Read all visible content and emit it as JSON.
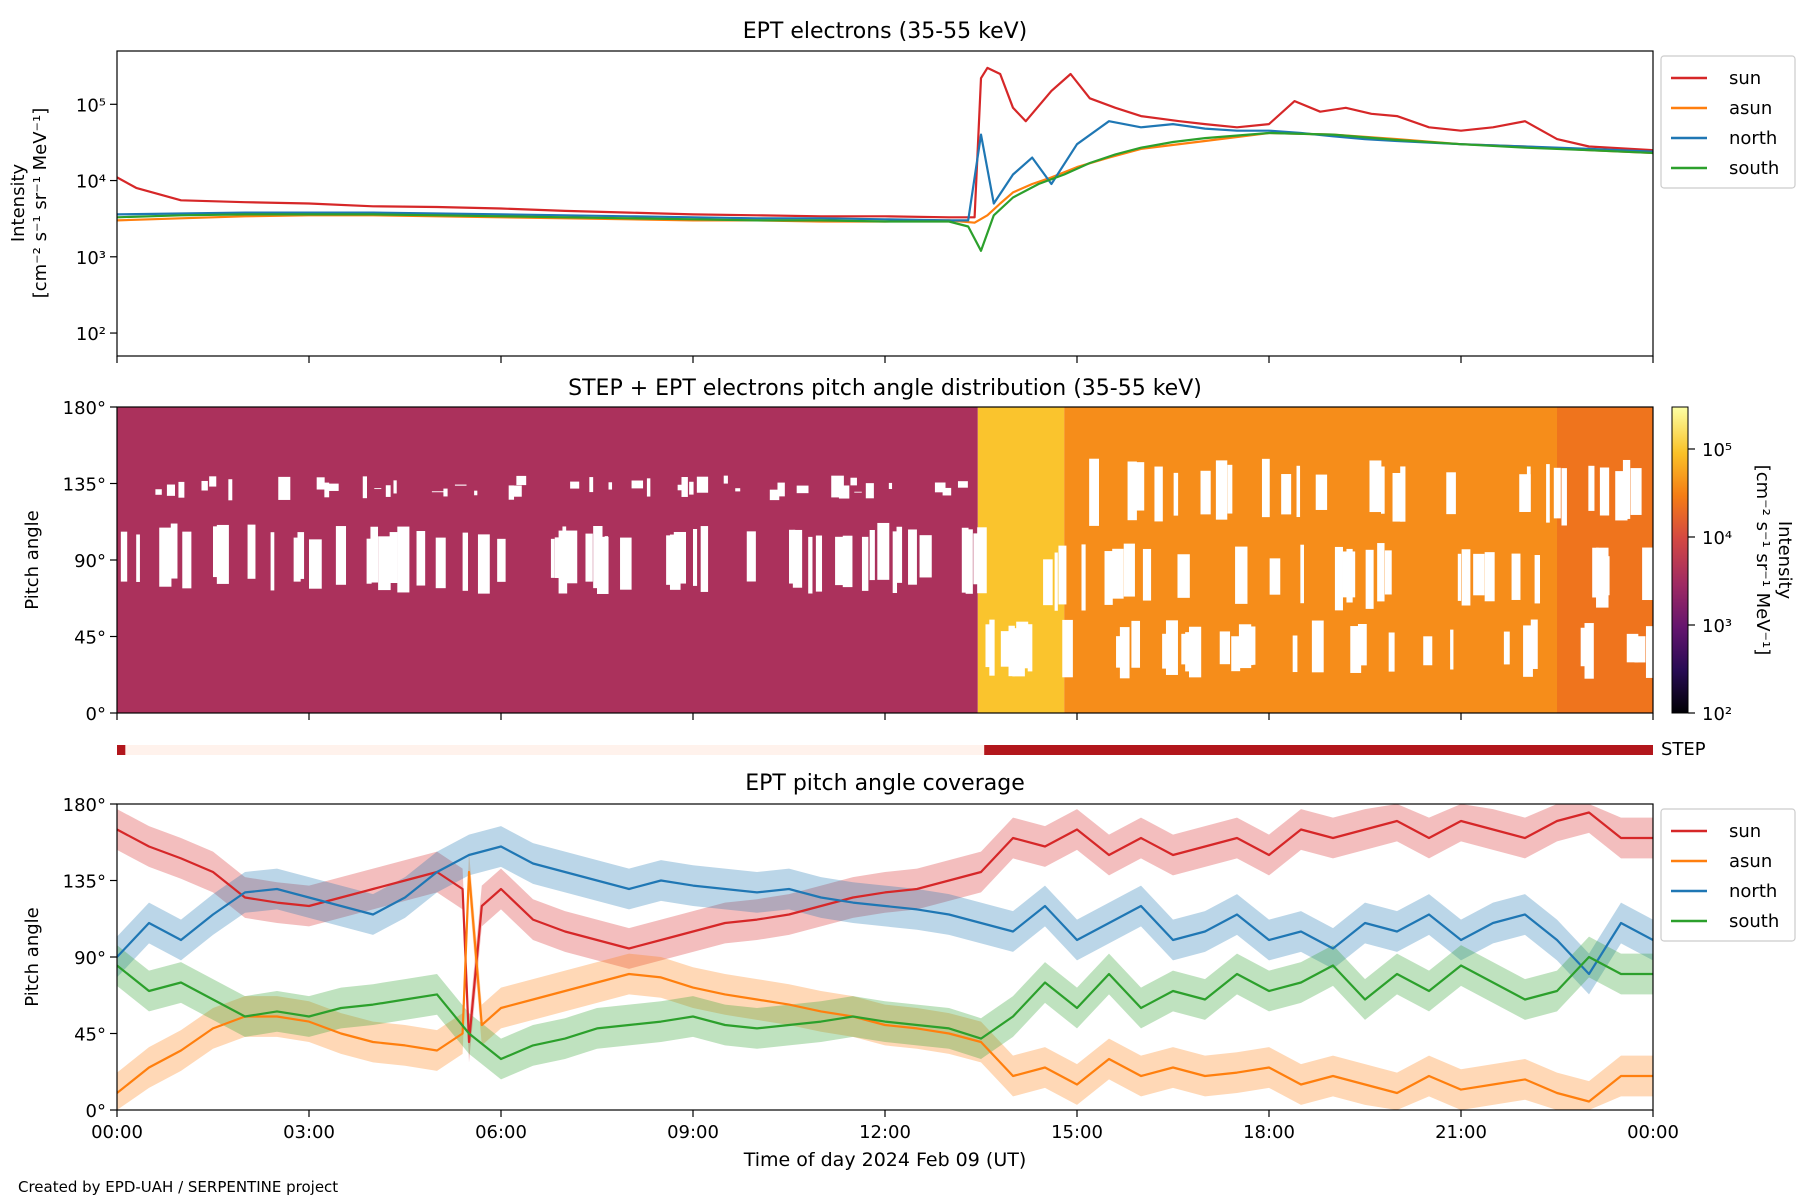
{
  "figure": {
    "footer": "Created by EPD-UAH / SERPENTINE project",
    "xlabel": "Time of day 2024 Feb 09 (UT)",
    "xticks": [
      "00:00",
      "03:00",
      "06:00",
      "09:00",
      "12:00",
      "15:00",
      "18:00",
      "21:00",
      "00:00"
    ]
  },
  "chart_data": [
    {
      "type": "line",
      "title": "EPT electrons (35-55 keV)",
      "ylabel_line1": "Intensity",
      "ylabel_line2": "[cm⁻² s⁻¹ sr⁻¹ MeV⁻¹]",
      "yscale": "log",
      "ylim": [
        50,
        500000
      ],
      "yticks": [
        "10²",
        "10³",
        "10⁴",
        "10⁵"
      ],
      "xlim_hours": [
        0,
        24
      ],
      "legend": {
        "placement": "outside-right",
        "entries": [
          "sun",
          "asun",
          "north",
          "south"
        ]
      },
      "series": [
        {
          "name": "sun",
          "color": "#d62728",
          "x": [
            0,
            0.3,
            1,
            2,
            3,
            4,
            5,
            6,
            7,
            8,
            9,
            10,
            11,
            12,
            13,
            13.4,
            13.5,
            13.6,
            13.8,
            14.0,
            14.2,
            14.6,
            14.9,
            15.2,
            15.6,
            16,
            16.6,
            17,
            17.5,
            18,
            18.4,
            18.8,
            19.2,
            19.6,
            20,
            20.5,
            21,
            21.5,
            22,
            22.5,
            23,
            24
          ],
          "y": [
            11000,
            8000,
            5500,
            5200,
            5000,
            4600,
            4500,
            4300,
            4000,
            3800,
            3600,
            3500,
            3400,
            3400,
            3300,
            3300,
            220000,
            300000,
            250000,
            90000,
            60000,
            150000,
            250000,
            120000,
            90000,
            70000,
            60000,
            55000,
            50000,
            55000,
            110000,
            80000,
            90000,
            75000,
            70000,
            50000,
            45000,
            50000,
            60000,
            35000,
            28000,
            25000
          ]
        },
        {
          "name": "asun",
          "color": "#ff7f0e",
          "x": [
            0,
            1,
            2,
            3,
            4,
            5,
            6,
            7,
            8,
            9,
            10,
            11,
            12,
            13,
            13.4,
            13.6,
            13.8,
            14.0,
            14.3,
            14.6,
            15,
            15.5,
            16,
            17,
            18,
            19,
            20,
            21,
            22,
            23,
            24
          ],
          "y": [
            3000,
            3200,
            3400,
            3500,
            3500,
            3400,
            3300,
            3200,
            3100,
            3000,
            3000,
            2900,
            2900,
            3000,
            2800,
            3500,
            5000,
            7000,
            9000,
            11000,
            15000,
            20000,
            26000,
            33000,
            42000,
            40000,
            35000,
            30000,
            28000,
            25000,
            23000
          ]
        },
        {
          "name": "north",
          "color": "#1f77b4",
          "x": [
            0,
            1,
            2,
            3,
            4,
            5,
            6,
            7,
            8,
            9,
            10,
            11,
            12,
            13,
            13.3,
            13.5,
            13.7,
            14.0,
            14.3,
            14.6,
            15,
            15.5,
            16,
            16.5,
            17,
            17.5,
            18,
            18.5,
            19,
            19.5,
            20,
            21,
            22,
            23,
            24
          ],
          "y": [
            3600,
            3700,
            3800,
            3800,
            3800,
            3700,
            3600,
            3500,
            3400,
            3300,
            3200,
            3200,
            3100,
            3000,
            3000,
            40000,
            5000,
            12000,
            20000,
            9000,
            30000,
            60000,
            50000,
            55000,
            48000,
            45000,
            45000,
            42000,
            38000,
            35000,
            33000,
            30000,
            28000,
            26000,
            24000
          ]
        },
        {
          "name": "south",
          "color": "#2ca02c",
          "x": [
            0,
            1,
            2,
            3,
            4,
            5,
            6,
            7,
            8,
            9,
            10,
            11,
            12,
            13,
            13.3,
            13.5,
            13.7,
            14.0,
            14.4,
            14.8,
            15.2,
            15.6,
            16,
            16.5,
            17,
            18,
            19,
            20,
            21,
            22,
            23,
            24
          ],
          "y": [
            3300,
            3500,
            3600,
            3600,
            3600,
            3500,
            3400,
            3300,
            3200,
            3100,
            3000,
            3000,
            2900,
            2900,
            2500,
            1200,
            3500,
            6000,
            9000,
            12000,
            17000,
            22000,
            27000,
            32000,
            36000,
            42000,
            40000,
            34000,
            30000,
            27000,
            25000,
            23000
          ]
        }
      ]
    },
    {
      "type": "heatmap",
      "title": "STEP + EPT electrons pitch angle distribution (35-55 keV)",
      "ylabel": "Pitch angle",
      "yticks": [
        "0°",
        "45°",
        "90°",
        "135°",
        "180°"
      ],
      "ylim": [
        0,
        180
      ],
      "xlim_hours": [
        0,
        24
      ],
      "colorbar": {
        "label_line1": "Intensity",
        "label_line2": "[cm⁻² s⁻¹ sr⁻¹ MeV⁻¹]",
        "scale": "log",
        "range": [
          100,
          300000
        ],
        "ticks": [
          "10²",
          "10³",
          "10⁴",
          "10⁵"
        ],
        "colors": [
          "#000004",
          "#280b54",
          "#65156e",
          "#9f2a63",
          "#d44842",
          "#f57d15",
          "#fac228",
          "#fcffa4"
        ]
      },
      "segments": [
        {
          "start_h": 0,
          "end_h": 13.45,
          "intensity": 4000
        },
        {
          "start_h": 13.45,
          "end_h": 14.8,
          "intensity": 100000
        },
        {
          "start_h": 14.8,
          "end_h": 22.5,
          "intensity": 40000
        },
        {
          "start_h": 22.5,
          "end_h": 24,
          "intensity": 25000
        }
      ],
      "step_bar": {
        "label": "STEP",
        "active_color": "#b2161c",
        "inactive_color": "#fff2ec",
        "active_intervals_h": [
          [
            0,
            0.13
          ],
          [
            13.55,
            24
          ]
        ]
      }
    },
    {
      "type": "line",
      "title": "EPT pitch angle coverage",
      "ylabel": "Pitch angle",
      "yticks": [
        "0°",
        "45°",
        "90°",
        "135°",
        "180°"
      ],
      "ylim": [
        0,
        180
      ],
      "xlim_hours": [
        0,
        24
      ],
      "legend": {
        "placement": "outside-right",
        "entries": [
          "sun",
          "asun",
          "north",
          "south"
        ]
      },
      "series": [
        {
          "name": "sun",
          "color": "#d62728",
          "x": [
            0,
            0.5,
            1,
            1.5,
            2,
            2.5,
            3,
            3.5,
            4,
            4.5,
            5,
            5.4,
            5.5,
            5.7,
            6,
            6.5,
            7,
            7.5,
            8,
            8.5,
            9,
            9.5,
            10,
            10.5,
            11,
            11.5,
            12,
            12.5,
            13,
            13.5,
            14,
            14.5,
            15,
            15.5,
            16,
            16.5,
            17,
            17.5,
            18,
            18.5,
            19,
            19.5,
            20,
            20.5,
            21,
            21.5,
            22,
            22.5,
            23,
            23.5,
            24
          ],
          "y": [
            165,
            155,
            148,
            140,
            125,
            122,
            120,
            125,
            130,
            135,
            140,
            130,
            40,
            120,
            130,
            112,
            105,
            100,
            95,
            100,
            105,
            110,
            112,
            115,
            120,
            125,
            128,
            130,
            135,
            140,
            160,
            155,
            165,
            150,
            160,
            150,
            155,
            160,
            150,
            165,
            160,
            165,
            170,
            160,
            170,
            165,
            160,
            170,
            175,
            160,
            160
          ]
        },
        {
          "name": "asun",
          "color": "#ff7f0e",
          "x": [
            0,
            0.5,
            1,
            1.5,
            2,
            2.5,
            3,
            3.5,
            4,
            4.5,
            5,
            5.4,
            5.5,
            5.7,
            6,
            6.5,
            7,
            7.5,
            8,
            8.5,
            9,
            9.5,
            10,
            10.5,
            11,
            11.5,
            12,
            12.5,
            13,
            13.5,
            14,
            14.5,
            15,
            15.5,
            16,
            16.5,
            17,
            17.5,
            18,
            18.5,
            19,
            19.5,
            20,
            20.5,
            21,
            21.5,
            22,
            22.5,
            23,
            23.5,
            24
          ],
          "y": [
            10,
            25,
            35,
            48,
            55,
            55,
            52,
            45,
            40,
            38,
            35,
            45,
            140,
            50,
            60,
            65,
            70,
            75,
            80,
            78,
            72,
            68,
            65,
            62,
            58,
            55,
            50,
            48,
            45,
            40,
            20,
            25,
            15,
            30,
            20,
            25,
            20,
            22,
            25,
            15,
            20,
            15,
            10,
            20,
            12,
            15,
            18,
            10,
            5,
            20,
            20
          ]
        },
        {
          "name": "north",
          "color": "#1f77b4",
          "x": [
            0,
            0.5,
            1,
            1.5,
            2,
            2.5,
            3,
            3.5,
            4,
            4.5,
            5,
            5.5,
            6,
            6.5,
            7,
            7.5,
            8,
            8.5,
            9,
            9.5,
            10,
            10.5,
            11,
            11.5,
            12,
            12.5,
            13,
            13.5,
            14,
            14.5,
            15,
            15.5,
            16,
            16.5,
            17,
            17.5,
            18,
            18.5,
            19,
            19.5,
            20,
            20.5,
            21,
            21.5,
            22,
            22.5,
            23,
            23.5,
            24
          ],
          "y": [
            90,
            110,
            100,
            115,
            128,
            130,
            125,
            120,
            115,
            125,
            140,
            150,
            155,
            145,
            140,
            135,
            130,
            135,
            132,
            130,
            128,
            130,
            125,
            122,
            120,
            118,
            115,
            110,
            105,
            120,
            100,
            110,
            120,
            100,
            105,
            115,
            100,
            105,
            95,
            110,
            105,
            115,
            100,
            110,
            115,
            100,
            80,
            110,
            100
          ]
        },
        {
          "name": "south",
          "color": "#2ca02c",
          "x": [
            0,
            0.5,
            1,
            1.5,
            2,
            2.5,
            3,
            3.5,
            4,
            4.5,
            5,
            5.5,
            6,
            6.5,
            7,
            7.5,
            8,
            8.5,
            9,
            9.5,
            10,
            10.5,
            11,
            11.5,
            12,
            12.5,
            13,
            13.5,
            14,
            14.5,
            15,
            15.5,
            16,
            16.5,
            17,
            17.5,
            18,
            18.5,
            19,
            19.5,
            20,
            20.5,
            21,
            21.5,
            22,
            22.5,
            23,
            23.5,
            24
          ],
          "y": [
            85,
            70,
            75,
            65,
            55,
            58,
            55,
            60,
            62,
            65,
            68,
            45,
            30,
            38,
            42,
            48,
            50,
            52,
            55,
            50,
            48,
            50,
            52,
            55,
            52,
            50,
            48,
            42,
            55,
            75,
            60,
            80,
            60,
            70,
            65,
            80,
            70,
            75,
            85,
            65,
            80,
            70,
            85,
            75,
            65,
            70,
            90,
            80,
            80
          ]
        }
      ]
    }
  ]
}
